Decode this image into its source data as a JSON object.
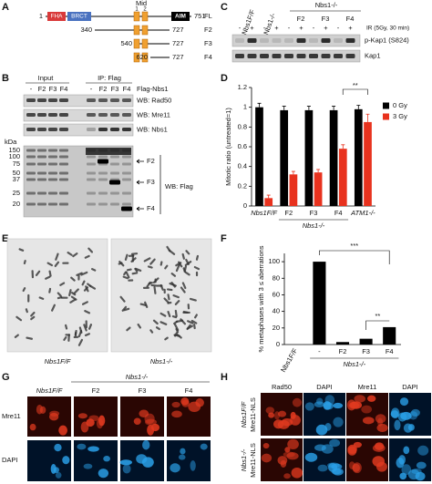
{
  "figure": {
    "panel_labels": [
      "A",
      "B",
      "C",
      "D",
      "E",
      "F",
      "G",
      "H"
    ]
  },
  "panel_a": {
    "domains": [
      "FHA",
      "BRCT"
    ],
    "mid_label": "Mid",
    "mid_numbers": [
      "1",
      "2"
    ],
    "aim": "AIM",
    "constructs": [
      {
        "start": "1",
        "end": "751",
        "name": "FL"
      },
      {
        "start": "340",
        "end": "727",
        "name": "F2"
      },
      {
        "start": "540",
        "end": "727",
        "name": "F3"
      },
      {
        "start": "620",
        "end": "727",
        "name": "F4"
      }
    ]
  },
  "panel_b": {
    "input": "Input",
    "ip": "IP: Flag",
    "lanes": [
      "-",
      "F2",
      "F3",
      "F4",
      "-",
      "F2",
      "F3",
      "F4"
    ],
    "flag_nbs1": "Flag-Nbs1",
    "wb_top": [
      "WB: Rad50",
      "WB: Mre11",
      "WB: Nbs1"
    ],
    "kda": "kDa",
    "markers": [
      "150",
      "100",
      "75",
      "50",
      "37",
      "25",
      "20"
    ],
    "bands": [
      "F2",
      "F3",
      "F4"
    ],
    "wb_flag": "WB: Flag"
  },
  "panel_c": {
    "genotypes": [
      "Nbs1F/F",
      "Nbs1-/-"
    ],
    "rescue_group": "Nbs1-/-",
    "lanes": [
      "F2",
      "F3",
      "F4"
    ],
    "ir_label": "IR (5Gy, 30 min)",
    "ir_signs": [
      "-",
      "+",
      "-",
      "+",
      "-",
      "+",
      "-",
      "+",
      "-",
      "+"
    ],
    "blots": [
      "p-Kap1 (S824)",
      "Kap1"
    ]
  },
  "panel_e": {
    "labels": [
      "Nbs1F/F",
      "Nbs1-/-"
    ]
  },
  "panel_g": {
    "group": "Nbs1-/-",
    "columns": [
      "Nbs1F/F",
      "F2",
      "F3",
      "F4"
    ],
    "rows": [
      "Mre11",
      "DAPI"
    ]
  },
  "panel_h": {
    "columns": [
      "Rad50",
      "DAPI",
      "Mre11",
      "DAPI"
    ],
    "rows": [
      [
        "Nbs1F/F",
        "Mre11-NLS"
      ],
      [
        "Nbs1-/-",
        "Mre11-NLS"
      ]
    ]
  },
  "chart_data": [
    {
      "type": "bar",
      "y_label": "Mitotic ratio (untreated=1)",
      "categories": [
        "Nbs1F/F",
        "F2",
        "F3",
        "F4",
        "ATM1-/-"
      ],
      "group_label": "Nbs1-/-",
      "series": [
        {
          "name": "0 Gy",
          "color": "#000000",
          "values": [
            1.0,
            0.97,
            0.97,
            0.97,
            0.98
          ],
          "errors": [
            0.04,
            0.04,
            0.04,
            0.04,
            0.04
          ]
        },
        {
          "name": "3 Gy",
          "color": "#e8321e",
          "values": [
            0.08,
            0.32,
            0.34,
            0.58,
            0.85
          ],
          "errors": [
            0.03,
            0.03,
            0.03,
            0.04,
            0.08
          ]
        }
      ],
      "ylim": [
        0,
        1.2
      ],
      "yticks": [
        0,
        0.2,
        0.4,
        0.6,
        0.8,
        1,
        1.2
      ],
      "annotations": [
        "**"
      ],
      "legend": "right"
    },
    {
      "type": "bar",
      "y_label": "% metaphases with 3 ≤ aberrations",
      "categories": [
        "Nbs1F/F",
        "-",
        "F2",
        "F3",
        "F4"
      ],
      "group_label": "Nbs1-/-",
      "values": [
        0,
        100,
        3,
        7,
        21
      ],
      "color": "#000000",
      "ylim": [
        0,
        110
      ],
      "yticks": [
        0,
        20,
        40,
        60,
        80,
        100
      ],
      "annotations": [
        "***",
        "**"
      ]
    }
  ]
}
